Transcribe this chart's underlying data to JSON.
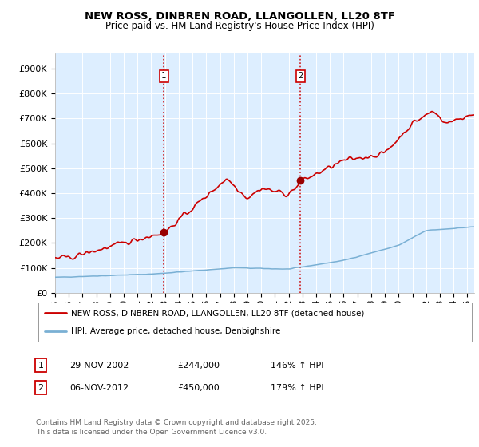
{
  "title": "NEW ROSS, DINBREN ROAD, LLANGOLLEN, LL20 8TF",
  "subtitle": "Price paid vs. HM Land Registry's House Price Index (HPI)",
  "ylabel_ticks": [
    "£0",
    "£100K",
    "£200K",
    "£300K",
    "£400K",
    "£500K",
    "£600K",
    "£700K",
    "£800K",
    "£900K"
  ],
  "ytick_values": [
    0,
    100000,
    200000,
    300000,
    400000,
    500000,
    600000,
    700000,
    800000,
    900000
  ],
  "ylim": [
    0,
    960000
  ],
  "xlim_start": 1995.0,
  "xlim_end": 2025.5,
  "marker1_x": 2002.92,
  "marker1_y": 244000,
  "marker2_x": 2012.85,
  "marker2_y": 450000,
  "red_color": "#cc0000",
  "blue_color": "#7ab0d4",
  "dashed_color": "#cc0000",
  "legend_label_red": "NEW ROSS, DINBREN ROAD, LLANGOLLEN, LL20 8TF (detached house)",
  "legend_label_blue": "HPI: Average price, detached house, Denbighshire",
  "footnote": "Contains HM Land Registry data © Crown copyright and database right 2025.\nThis data is licensed under the Open Government Licence v3.0.",
  "bg_color": "#ddeeff",
  "table_rows": [
    {
      "num": "1",
      "date": "29-NOV-2002",
      "price": "£244,000",
      "hpi": "146% ↑ HPI"
    },
    {
      "num": "2",
      "date": "06-NOV-2012",
      "price": "£450,000",
      "hpi": "179% ↑ HPI"
    }
  ]
}
